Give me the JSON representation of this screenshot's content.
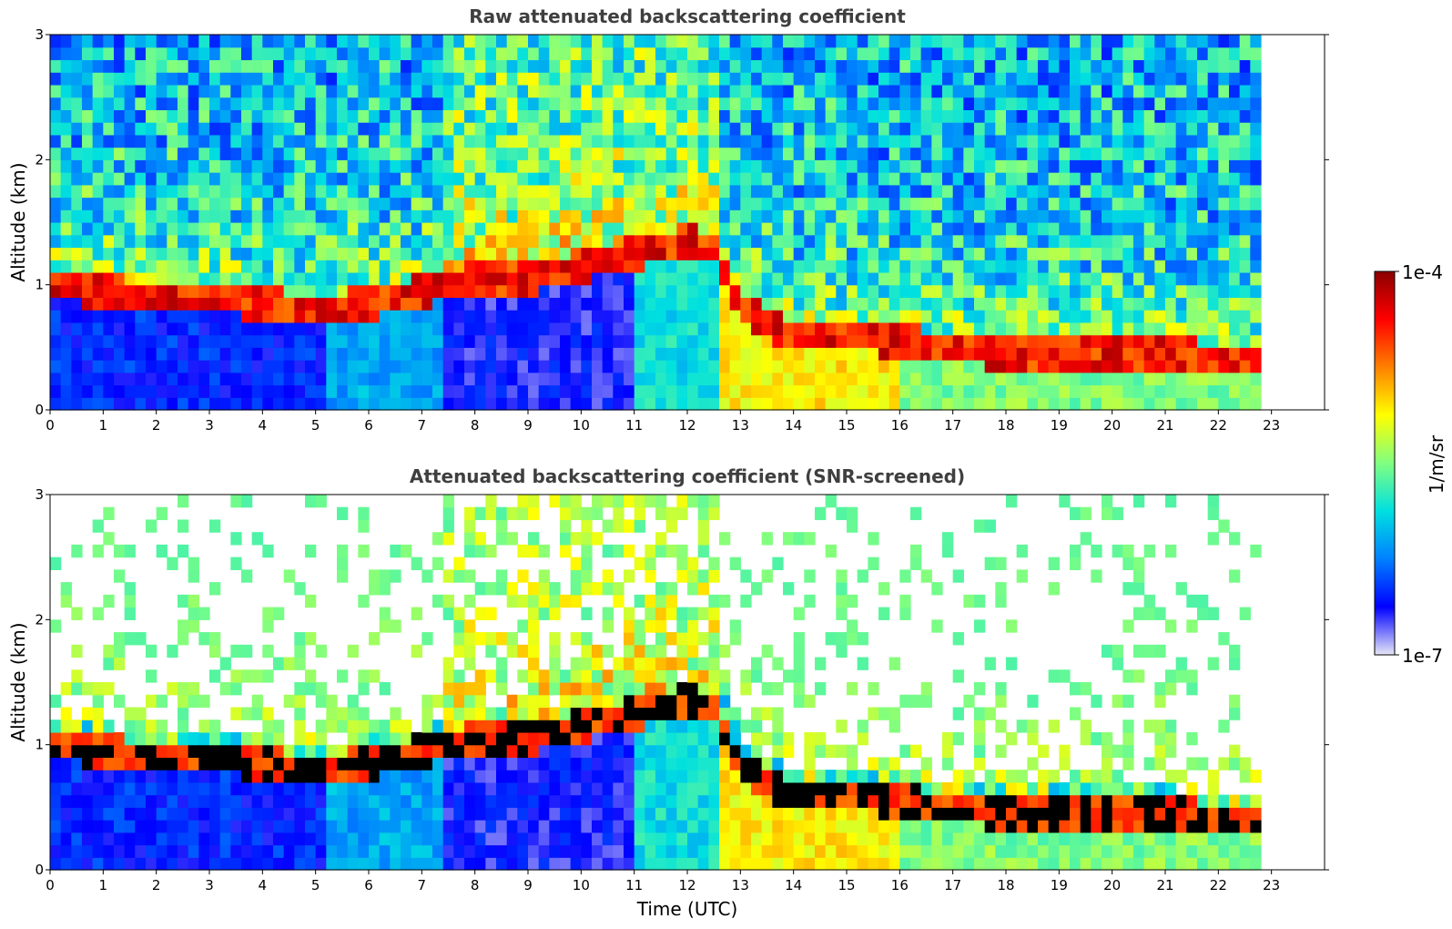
{
  "chart_data": [
    {
      "type": "heatmap",
      "title": "Raw attenuated backscattering coefficient",
      "xlabel": "",
      "ylabel": "Altitude (km)",
      "xlim": [
        0,
        24
      ],
      "ylim": [
        0,
        3
      ],
      "xticks": [
        "0",
        "1",
        "2",
        "3",
        "4",
        "5",
        "6",
        "7",
        "8",
        "9",
        "10",
        "11",
        "12",
        "13",
        "14",
        "15",
        "16",
        "17",
        "18",
        "19",
        "20",
        "21",
        "22",
        "23"
      ],
      "yticks": [
        "0",
        "1",
        "2",
        "3"
      ],
      "data_end_hour": 22.8,
      "screened": false,
      "layer_top_km": [
        [
          0,
          1.0
        ],
        [
          1,
          0.95
        ],
        [
          2,
          0.9
        ],
        [
          3,
          0.9
        ],
        [
          4,
          0.85
        ],
        [
          5,
          0.8
        ],
        [
          6,
          0.85
        ],
        [
          7,
          0.95
        ],
        [
          8,
          1.05
        ],
        [
          9,
          1.05
        ],
        [
          10,
          1.15
        ],
        [
          11,
          1.25
        ],
        [
          12,
          1.35
        ],
        [
          12.5,
          1.3
        ],
        [
          13,
          0.8
        ],
        [
          14,
          0.6
        ],
        [
          15,
          0.6
        ],
        [
          16,
          0.55
        ],
        [
          17,
          0.5
        ],
        [
          18,
          0.45
        ],
        [
          19,
          0.45
        ],
        [
          20,
          0.45
        ],
        [
          21,
          0.45
        ],
        [
          22,
          0.42
        ],
        [
          22.8,
          0.42
        ]
      ]
    },
    {
      "type": "heatmap",
      "title": "Attenuated backscattering coefficient (SNR-screened)",
      "xlabel": "Time (UTC)",
      "ylabel": "Altitude (km)",
      "xlim": [
        0,
        24
      ],
      "ylim": [
        0,
        3
      ],
      "xticks": [
        "0",
        "1",
        "2",
        "3",
        "4",
        "5",
        "6",
        "7",
        "8",
        "9",
        "10",
        "11",
        "12",
        "13",
        "14",
        "15",
        "16",
        "17",
        "18",
        "19",
        "20",
        "21",
        "22",
        "23"
      ],
      "yticks": [
        "0",
        "1",
        "2",
        "3"
      ],
      "data_end_hour": 22.8,
      "screened": true,
      "layer_top_km": [
        [
          0,
          1.0
        ],
        [
          1,
          0.95
        ],
        [
          2,
          0.9
        ],
        [
          3,
          0.9
        ],
        [
          4,
          0.85
        ],
        [
          5,
          0.8
        ],
        [
          6,
          0.85
        ],
        [
          7,
          0.95
        ],
        [
          8,
          1.05
        ],
        [
          9,
          1.05
        ],
        [
          10,
          1.15
        ],
        [
          11,
          1.25
        ],
        [
          12,
          1.35
        ],
        [
          12.5,
          1.3
        ],
        [
          13,
          0.8
        ],
        [
          14,
          0.6
        ],
        [
          15,
          0.6
        ],
        [
          16,
          0.55
        ],
        [
          17,
          0.5
        ],
        [
          18,
          0.45
        ],
        [
          19,
          0.45
        ],
        [
          20,
          0.45
        ],
        [
          21,
          0.45
        ],
        [
          22,
          0.42
        ],
        [
          22.8,
          0.42
        ]
      ]
    }
  ],
  "colorbar": {
    "label": "1/m/sr",
    "max_label": "1e-4",
    "min_label": "1e-7",
    "scale": "log",
    "range": [
      1e-07,
      0.0001
    ],
    "colors": [
      "#e6e6f7",
      "#0000ff",
      "#0080ff",
      "#00e0e0",
      "#80ff80",
      "#ffff00",
      "#ff8000",
      "#ff0000",
      "#8b0000"
    ]
  }
}
